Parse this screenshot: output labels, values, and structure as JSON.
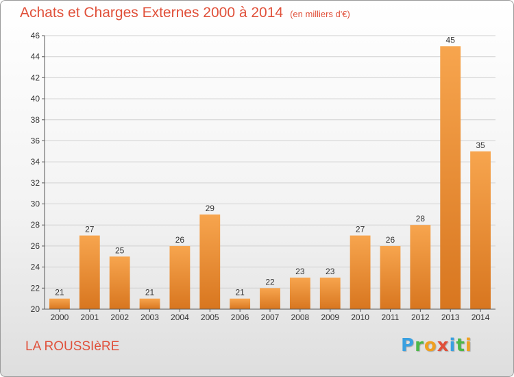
{
  "header": {
    "title": "Achats et Charges Externes 2000 à 2014",
    "subtitle": "(en milliers d'€)"
  },
  "footer": {
    "commune": "LA ROUSSIèRE",
    "logo_letters": [
      "P",
      "r",
      "o",
      "x",
      "i",
      "t",
      "i"
    ],
    "logo_colors": [
      "#3aa0e0",
      "#4cb848",
      "#f0a020",
      "#e0503a",
      "#3aa0e0",
      "#4cb848",
      "#f0a020"
    ]
  },
  "chart_data": {
    "type": "bar",
    "title": "Achats et Charges Externes 2000 à 2014",
    "subtitle": "(en milliers d'€)",
    "categories": [
      "2000",
      "2001",
      "2002",
      "2003",
      "2004",
      "2005",
      "2006",
      "2007",
      "2008",
      "2009",
      "2010",
      "2011",
      "2012",
      "2013",
      "2014"
    ],
    "values": [
      21,
      27,
      25,
      21,
      26,
      29,
      21,
      22,
      23,
      23,
      27,
      26,
      28,
      45,
      35
    ],
    "ylim": [
      20,
      46
    ],
    "yticks": [
      20,
      22,
      24,
      26,
      28,
      30,
      32,
      34,
      36,
      38,
      40,
      42,
      44,
      46
    ],
    "grid": true,
    "bar_color_light": "#f7a54e",
    "bar_color_dark": "#d8761f",
    "grid_color": "#d0d0d0",
    "axis_color": "#555555"
  }
}
